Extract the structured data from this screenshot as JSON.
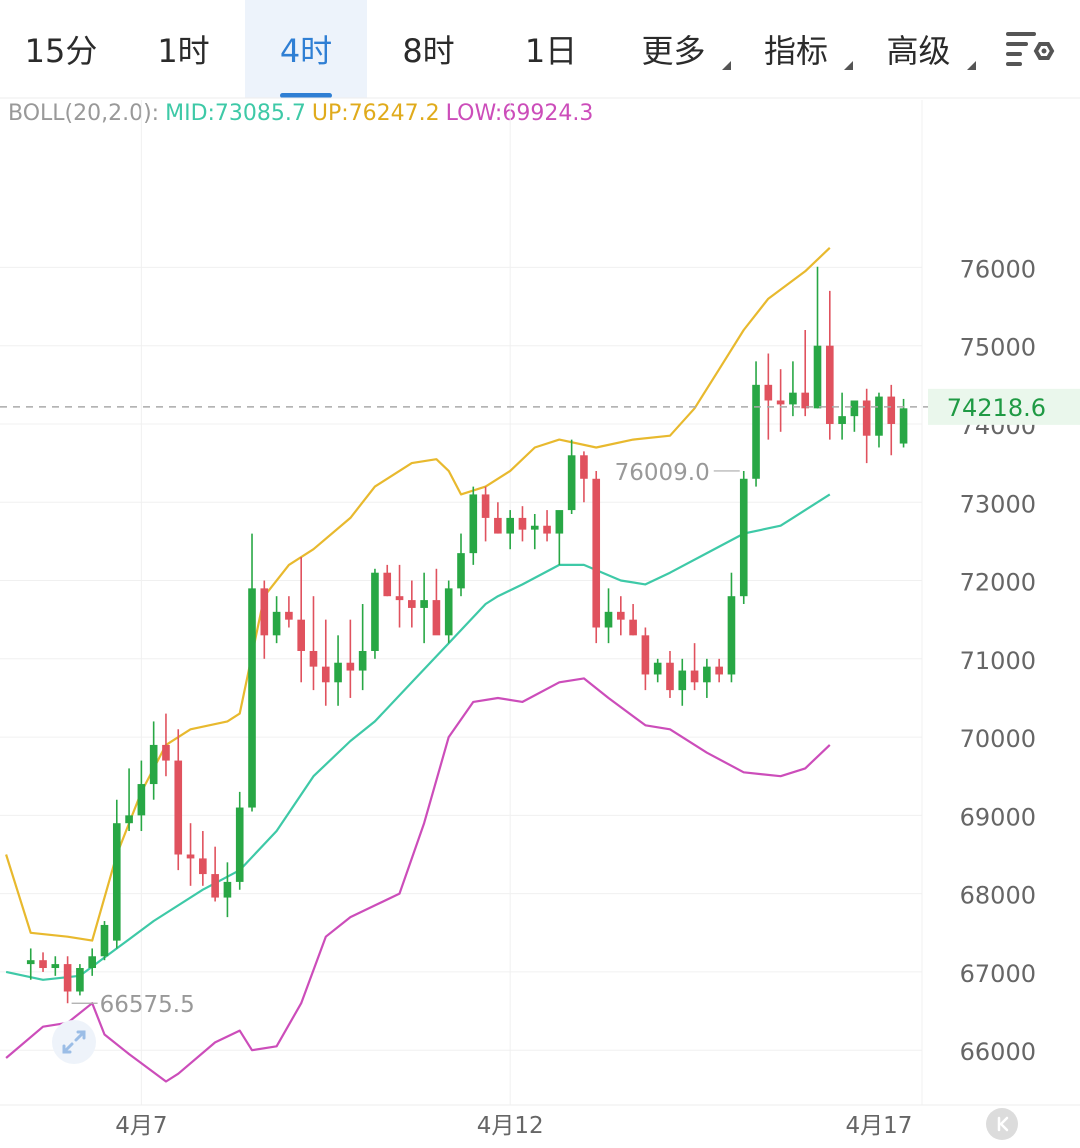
{
  "tabs": [
    {
      "label": "15分",
      "active": false
    },
    {
      "label": "1时",
      "active": false
    },
    {
      "label": "4时",
      "active": true
    },
    {
      "label": "8时",
      "active": false
    },
    {
      "label": "1日",
      "active": false
    },
    {
      "label": "更多",
      "active": false
    },
    {
      "label": "指标",
      "active": false
    },
    {
      "label": "高级",
      "active": false
    }
  ],
  "settings_icon": "settings-icon",
  "indicator": {
    "name": "BOLL(20,2.0):",
    "mid_label": "MID:73085.7",
    "up_label": "UP:76247.2",
    "low_label": "LOW:69924.3"
  },
  "colors": {
    "up": "#28a745",
    "down": "#e0525e",
    "mid": "#3ec9a7",
    "upper": "#e8b92e",
    "lower": "#cc4dba",
    "boll_name": "#999999",
    "active_tab": "#2f7fd4"
  },
  "chart_data": {
    "type": "candlestick",
    "y_ticks": [
      76000,
      75000,
      74000,
      73000,
      72000,
      71000,
      70000,
      69000,
      68000,
      67000,
      66000
    ],
    "y_range": [
      65300,
      77500
    ],
    "x_labels": [
      "4月7",
      "4月12",
      "4月17"
    ],
    "x_label_index": [
      9,
      39,
      69
    ],
    "x_range": [
      -2.5,
      72.5
    ],
    "last_price": "74218.6",
    "max_label": "76009.0",
    "max_label_index": 58,
    "min_label": "66575.5",
    "min_label_index": 3,
    "candles": [
      [
        67100,
        67300,
        66900,
        67150
      ],
      [
        67150,
        67250,
        67000,
        67050
      ],
      [
        67050,
        67200,
        66950,
        67100
      ],
      [
        67100,
        67200,
        66600,
        66750
      ],
      [
        66750,
        67100,
        66700,
        67050
      ],
      [
        67050,
        67300,
        66950,
        67200
      ],
      [
        67200,
        67650,
        67150,
        67600
      ],
      [
        67400,
        69200,
        67300,
        68900
      ],
      [
        68900,
        69600,
        68800,
        69000
      ],
      [
        69000,
        69700,
        68800,
        69400
      ],
      [
        69400,
        70200,
        69200,
        69900
      ],
      [
        69900,
        70300,
        69500,
        69700
      ],
      [
        69700,
        70100,
        68300,
        68500
      ],
      [
        68500,
        68900,
        68100,
        68450
      ],
      [
        68450,
        68800,
        68100,
        68250
      ],
      [
        68250,
        68600,
        67900,
        67950
      ],
      [
        67950,
        68400,
        67700,
        68150
      ],
      [
        68150,
        69300,
        68050,
        69100
      ],
      [
        69100,
        72600,
        69050,
        71900
      ],
      [
        71900,
        72000,
        71000,
        71300
      ],
      [
        71300,
        71800,
        71200,
        71600
      ],
      [
        71600,
        71800,
        71400,
        71500
      ],
      [
        71500,
        72300,
        70700,
        71100
      ],
      [
        71100,
        71800,
        70600,
        70900
      ],
      [
        70900,
        71500,
        70400,
        70700
      ],
      [
        70700,
        71300,
        70400,
        70950
      ],
      [
        70950,
        71500,
        70500,
        70850
      ],
      [
        70850,
        71700,
        70600,
        71100
      ],
      [
        71100,
        72150,
        71000,
        72100
      ],
      [
        72100,
        72200,
        71800,
        71800
      ],
      [
        71800,
        72200,
        71400,
        71750
      ],
      [
        71750,
        72000,
        71400,
        71650
      ],
      [
        71650,
        72100,
        71200,
        71750
      ],
      [
        71750,
        72150,
        71400,
        71300
      ],
      [
        71300,
        72000,
        71200,
        71900
      ],
      [
        71900,
        72600,
        71800,
        72350
      ],
      [
        72350,
        73200,
        72200,
        73100
      ],
      [
        73100,
        73200,
        72500,
        72800
      ],
      [
        72800,
        73000,
        72600,
        72600
      ],
      [
        72600,
        72900,
        72400,
        72800
      ],
      [
        72800,
        72950,
        72500,
        72650
      ],
      [
        72650,
        72850,
        72400,
        72700
      ],
      [
        72700,
        72900,
        72500,
        72600
      ],
      [
        72600,
        72800,
        72200,
        72900
      ],
      [
        72900,
        73800,
        72850,
        73600
      ],
      [
        73600,
        73650,
        73000,
        73300
      ],
      [
        73300,
        73400,
        71200,
        71400
      ],
      [
        71400,
        71900,
        71200,
        71600
      ],
      [
        71600,
        71800,
        71300,
        71500
      ],
      [
        71500,
        71700,
        71300,
        71300
      ],
      [
        71300,
        71400,
        70600,
        70800
      ],
      [
        70800,
        71000,
        70700,
        70950
      ],
      [
        70950,
        71100,
        70500,
        70600
      ],
      [
        70600,
        71000,
        70400,
        70850
      ],
      [
        70850,
        71200,
        70600,
        70700
      ],
      [
        70700,
        71000,
        70500,
        70900
      ],
      [
        70900,
        71000,
        70700,
        70800
      ],
      [
        70800,
        72100,
        70700,
        71800
      ],
      [
        71800,
        73400,
        71700,
        73300
      ],
      [
        73300,
        74800,
        73200,
        74500
      ],
      [
        74500,
        74900,
        73800,
        74300
      ],
      [
        74300,
        74700,
        73900,
        74250
      ],
      [
        74250,
        74800,
        74100,
        74400
      ],
      [
        74400,
        75200,
        74100,
        74200
      ],
      [
        74200,
        76009,
        74200,
        75000
      ],
      [
        75000,
        75700,
        73800,
        74000
      ],
      [
        74000,
        74400,
        73800,
        74100
      ],
      [
        74100,
        74300,
        73900,
        74300
      ],
      [
        74300,
        74450,
        73500,
        73850
      ],
      [
        73850,
        74400,
        73700,
        74350
      ],
      [
        74350,
        74500,
        73600,
        74000
      ],
      [
        73750,
        74320,
        73700,
        74200
      ]
    ],
    "mid_line": [
      [
        -2,
        67000
      ],
      [
        1,
        66900
      ],
      [
        4,
        66950
      ],
      [
        7,
        67300
      ],
      [
        10,
        67650
      ],
      [
        14,
        68050
      ],
      [
        17,
        68300
      ],
      [
        20,
        68800
      ],
      [
        23,
        69500
      ],
      [
        26,
        69950
      ],
      [
        28,
        70200
      ],
      [
        31,
        70700
      ],
      [
        34,
        71200
      ],
      [
        37,
        71700
      ],
      [
        38,
        71800
      ],
      [
        40,
        71950
      ],
      [
        43,
        72200
      ],
      [
        45,
        72200
      ],
      [
        48,
        72000
      ],
      [
        50,
        71950
      ],
      [
        52,
        72100
      ],
      [
        55,
        72350
      ],
      [
        58,
        72600
      ],
      [
        61,
        72700
      ],
      [
        62,
        72800
      ],
      [
        65,
        73100
      ]
    ],
    "upper_line": [
      [
        -2,
        68500
      ],
      [
        0,
        67500
      ],
      [
        3,
        67450
      ],
      [
        5,
        67400
      ],
      [
        7,
        68500
      ],
      [
        9,
        69300
      ],
      [
        11,
        69900
      ],
      [
        13,
        70100
      ],
      [
        16,
        70200
      ],
      [
        17,
        70300
      ],
      [
        19,
        71800
      ],
      [
        21,
        72200
      ],
      [
        23,
        72400
      ],
      [
        26,
        72800
      ],
      [
        28,
        73200
      ],
      [
        31,
        73500
      ],
      [
        33,
        73550
      ],
      [
        34,
        73400
      ],
      [
        35,
        73100
      ],
      [
        37,
        73200
      ],
      [
        39,
        73400
      ],
      [
        41,
        73700
      ],
      [
        43,
        73800
      ],
      [
        46,
        73700
      ],
      [
        49,
        73800
      ],
      [
        52,
        73850
      ],
      [
        54,
        74200
      ],
      [
        56,
        74700
      ],
      [
        58,
        75200
      ],
      [
        60,
        75600
      ],
      [
        63,
        75950
      ],
      [
        65,
        76250
      ]
    ],
    "lower_line": [
      [
        -2,
        65900
      ],
      [
        1,
        66300
      ],
      [
        3,
        66350
      ],
      [
        5,
        66600
      ],
      [
        6,
        66200
      ],
      [
        8,
        65950
      ],
      [
        11,
        65600
      ],
      [
        12,
        65700
      ],
      [
        15,
        66100
      ],
      [
        17,
        66250
      ],
      [
        18,
        66000
      ],
      [
        20,
        66050
      ],
      [
        22,
        66600
      ],
      [
        24,
        67450
      ],
      [
        26,
        67700
      ],
      [
        28,
        67850
      ],
      [
        30,
        68000
      ],
      [
        32,
        68900
      ],
      [
        34,
        70000
      ],
      [
        36,
        70450
      ],
      [
        38,
        70500
      ],
      [
        40,
        70450
      ],
      [
        43,
        70700
      ],
      [
        45,
        70750
      ],
      [
        47,
        70500
      ],
      [
        50,
        70150
      ],
      [
        52,
        70100
      ],
      [
        55,
        69800
      ],
      [
        58,
        69550
      ],
      [
        61,
        69500
      ],
      [
        63,
        69600
      ],
      [
        65,
        69900
      ]
    ]
  }
}
